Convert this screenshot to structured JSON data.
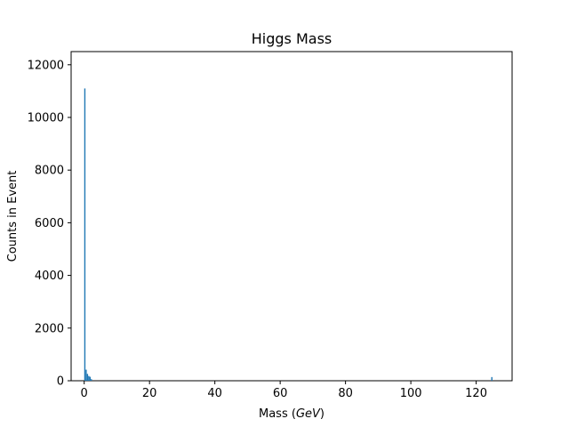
{
  "chart_data": {
    "type": "bar",
    "title": "Higgs Mass",
    "xlabel_main": "Mass (",
    "xlabel_unit": "GeV",
    "xlabel_close": ")",
    "ylabel": "Counts in Event",
    "xlim": [
      -4.0,
      131.0
    ],
    "ylim": [
      0,
      12500
    ],
    "xticks": [
      0,
      20,
      40,
      60,
      80,
      100,
      120
    ],
    "yticks": [
      0,
      2000,
      4000,
      6000,
      8000,
      10000,
      12000
    ],
    "bar_color": "#1f77b4",
    "bins": [
      {
        "x": 0.2,
        "y": 11100
      },
      {
        "x": 0.6,
        "y": 420
      },
      {
        "x": 1.0,
        "y": 260
      },
      {
        "x": 1.4,
        "y": 180
      },
      {
        "x": 1.8,
        "y": 150
      },
      {
        "x": 2.2,
        "y": 60
      },
      {
        "x": 124.8,
        "y": 140
      }
    ],
    "bin_width": 0.38
  }
}
